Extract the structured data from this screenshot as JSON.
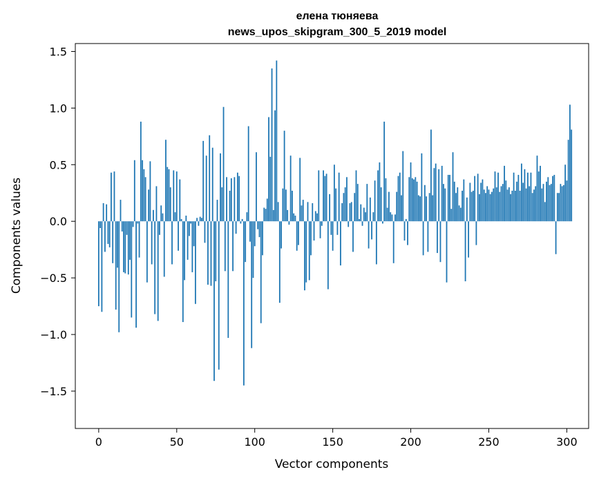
{
  "chart_data": {
    "type": "bar",
    "title": "елена тюняева",
    "subtitle": "news_upos_skipgram_300_5_2019 model",
    "xlabel": "Vector components",
    "ylabel": "Components values",
    "xlim": [
      -15,
      314
    ],
    "ylim": [
      -1.83,
      1.57
    ],
    "xticks": [
      0,
      50,
      100,
      150,
      200,
      250,
      300
    ],
    "xtick_labels": [
      "0",
      "50",
      "100",
      "150",
      "200",
      "250",
      "300"
    ],
    "yticks": [
      1.5,
      1.0,
      0.5,
      0.0,
      -0.5,
      -1.0,
      -1.5
    ],
    "ytick_labels": [
      "1.5",
      "1.0",
      "0.5",
      "0.0",
      "−0.5",
      "−1.0",
      "−1.5"
    ],
    "grid": false,
    "bar_color": "#1f77b4",
    "x_start": 0,
    "values": [
      -0.75,
      -0.06,
      -0.8,
      0.16,
      -0.27,
      0.15,
      -0.2,
      -0.23,
      0.43,
      -0.37,
      0.44,
      -0.78,
      -0.41,
      -0.98,
      0.19,
      -0.09,
      -0.45,
      -0.46,
      -0.12,
      -0.47,
      -0.34,
      -0.85,
      -0.05,
      0.54,
      -0.94,
      -0.02,
      -0.32,
      0.88,
      0.54,
      0.46,
      0.39,
      -0.54,
      0.28,
      0.53,
      -0.38,
      0.1,
      -0.82,
      0.31,
      -0.88,
      -0.12,
      0.14,
      0.07,
      -0.49,
      0.72,
      0.48,
      0.46,
      0.3,
      -0.38,
      0.45,
      0.08,
      0.44,
      -0.26,
      0.37,
      0.02,
      -0.89,
      -0.52,
      0.05,
      -0.34,
      -0.13,
      -0.02,
      -0.45,
      -0.22,
      -0.73,
      0.03,
      -0.04,
      0.04,
      0.03,
      0.71,
      -0.19,
      0.58,
      -0.56,
      0.76,
      -0.57,
      0.65,
      -1.41,
      -0.53,
      0.19,
      -1.31,
      0.6,
      0.3,
      1.01,
      -0.44,
      0.39,
      -1.03,
      0.27,
      0.38,
      -0.44,
      0.39,
      -0.11,
      0.43,
      0.4,
      -0.02,
      0.02,
      -1.45,
      -0.36,
      0.08,
      0.84,
      -0.18,
      -1.12,
      -0.5,
      -0.22,
      0.61,
      -0.07,
      -0.14,
      -0.9,
      -0.3,
      0.12,
      0.11,
      0.2,
      0.92,
      0.57,
      1.35,
      0.1,
      0.98,
      1.42,
      0.17,
      -0.72,
      -0.24,
      0.29,
      0.8,
      0.28,
      0.1,
      -0.03,
      0.58,
      0.27,
      0.07,
      0.05,
      -0.26,
      -0.21,
      0.56,
      0.14,
      0.19,
      -0.61,
      -0.54,
      0.17,
      -0.52,
      -0.3,
      0.16,
      -0.17,
      0.09,
      0.07,
      0.45,
      -0.15,
      -0.04,
      0.45,
      0.4,
      0.42,
      -0.6,
      0.24,
      -0.12,
      -0.26,
      0.5,
      0.29,
      -0.12,
      0.43,
      -0.39,
      0.16,
      0.25,
      0.3,
      0.39,
      -0.05,
      0.16,
      0.17,
      -0.27,
      0.25,
      0.45,
      0.33,
      0.02,
      0.15,
      -0.04,
      0.12,
      0.08,
      0.33,
      -0.24,
      0.21,
      -0.16,
      0.08,
      0.36,
      -0.38,
      0.45,
      0.52,
      0.3,
      -0.02,
      0.88,
      0.38,
      0.12,
      0.26,
      0.08,
      0.06,
      -0.37,
      0.06,
      0.26,
      0.4,
      0.43,
      0.23,
      0.62,
      -0.17,
      0.02,
      -0.21,
      0.39,
      0.52,
      0.38,
      0.37,
      0.39,
      0.35,
      0.23,
      0.22,
      0.6,
      -0.3,
      0.32,
      0.22,
      -0.27,
      0.25,
      0.81,
      0.23,
      0.47,
      0.51,
      -0.28,
      0.46,
      -0.36,
      0.49,
      0.33,
      0.29,
      -0.54,
      0.41,
      0.41,
      0.11,
      0.61,
      0.35,
      0.25,
      0.3,
      0.14,
      0.12,
      0.27,
      0.37,
      -0.53,
      0.21,
      -0.32,
      0.34,
      0.26,
      0.27,
      0.4,
      -0.21,
      0.42,
      0.24,
      0.34,
      0.37,
      0.28,
      0.25,
      0.31,
      0.28,
      0.24,
      0.26,
      0.29,
      0.44,
      0.3,
      0.43,
      0.26,
      0.31,
      0.33,
      0.49,
      0.36,
      0.28,
      0.3,
      0.24,
      0.27,
      0.43,
      0.27,
      0.35,
      0.41,
      0.27,
      0.51,
      0.34,
      0.46,
      0.29,
      0.43,
      0.31,
      0.43,
      0.25,
      0.28,
      0.31,
      0.58,
      0.44,
      0.49,
      0.29,
      0.33,
      0.17,
      0.35,
      0.39,
      0.32,
      0.33,
      0.4,
      0.41,
      -0.29,
      0.25,
      0.25,
      0.33,
      0.31,
      0.32,
      0.5,
      0.36,
      0.72,
      1.03,
      0.81
    ]
  }
}
